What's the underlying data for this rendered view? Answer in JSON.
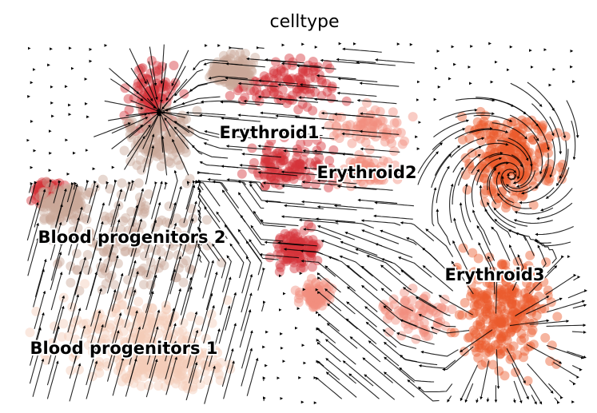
{
  "chart_data": {
    "type": "scatter",
    "title": "celltype",
    "xlabel": "",
    "ylabel": "",
    "grid": false,
    "overlay": "velocity streamlines",
    "clusters": [
      {
        "name": "Erythroid1",
        "color": "#d4343a"
      },
      {
        "name": "Erythroid2",
        "color": "#f28d7f"
      },
      {
        "name": "Erythroid3",
        "color": "#ec5a2c"
      },
      {
        "name": "Blood progenitors 2",
        "color": "#c9a898"
      },
      {
        "name": "Blood progenitors 1",
        "color": "#f3cdb8"
      }
    ]
  }
}
